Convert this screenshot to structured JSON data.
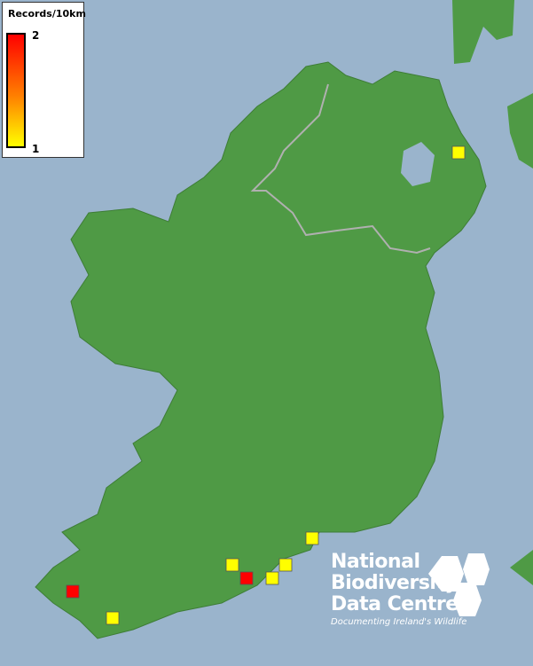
{
  "legend": {
    "title": "Records/10km",
    "max": "2",
    "min": "1",
    "colors": {
      "max": "#ff0000",
      "min": "#ffff00"
    }
  },
  "records": [
    1,
    1,
    1,
    1,
    2,
    1,
    2,
    1
  ],
  "colors": {
    "sea": "#9ab4cc",
    "land": "#4f9a45",
    "border": "#b0b0b0",
    "record_1": "#ffff00",
    "record_2": "#ff0000"
  },
  "logo": {
    "line1": "National",
    "line2": "Biodiversity",
    "line3": "Data Centre",
    "tagline": "Documenting Ireland's Wildlife"
  }
}
